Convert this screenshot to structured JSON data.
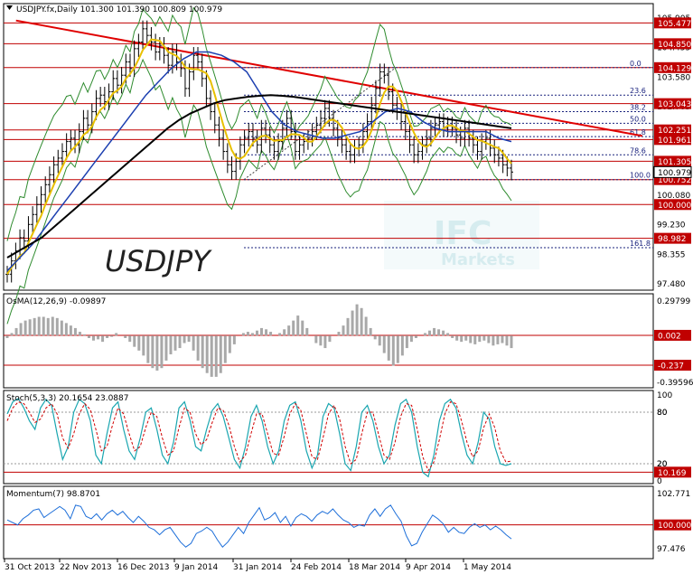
{
  "chart_data": {
    "type": "line",
    "main": {
      "title": "USDJPY.fx,Daily  101.300 101.390 100.809 100.979",
      "watermark": "USDJPY",
      "logo_top": "IFC",
      "logo_bottom": "Markets",
      "ylim": [
        97.5,
        105.95
      ],
      "yticks": [
        "105.905",
        "104.455",
        "103.580",
        "102.705",
        "101.830",
        "100.955",
        "100.080",
        "99.230",
        "98.355",
        "97.480"
      ],
      "price_tags": [
        {
          "value": 105.477,
          "label": "105.477"
        },
        {
          "value": 104.85,
          "label": "104.850"
        },
        {
          "value": 104.129,
          "label": "104.129"
        },
        {
          "value": 103.043,
          "label": "103.043"
        },
        {
          "value": 102.251,
          "label": "102.251"
        },
        {
          "value": 101.961,
          "label": "101.961"
        },
        {
          "value": 101.305,
          "label": "101.305"
        },
        {
          "value": 100.752,
          "label": "100.752"
        },
        {
          "value": 100.0,
          "label": "100.000"
        },
        {
          "value": 98.982,
          "label": "98.982"
        }
      ],
      "current": {
        "value": 100.979,
        "label": "100.979"
      },
      "fib_levels": [
        {
          "value": 104.129,
          "label": "0.0"
        },
        {
          "value": 103.3,
          "label": "23.6"
        },
        {
          "value": 102.8,
          "label": "38.2"
        },
        {
          "value": 102.45,
          "label": "50.0"
        },
        {
          "value": 102.05,
          "label": "61.8"
        },
        {
          "value": 101.5,
          "label": "78.6"
        },
        {
          "value": 100.752,
          "label": "100.0"
        },
        {
          "value": 98.7,
          "label": "161.8"
        }
      ],
      "trendline": {
        "start": {
          "x": 0.4,
          "y": 105.55
        },
        "end": {
          "x": 23.2,
          "y": 102.75
        }
      },
      "close_series": [
        97.9,
        98.3,
        98.6,
        99.0,
        98.9,
        99.4,
        99.7,
        100.0,
        100.3,
        100.6,
        100.9,
        101.2,
        101.4,
        101.6,
        101.9,
        102.0,
        101.8,
        102.2,
        102.6,
        102.4,
        102.8,
        103.2,
        103.3,
        103.1,
        103.4,
        103.8,
        103.6,
        103.9,
        104.3,
        104.1,
        104.7,
        104.9,
        105.3,
        105.1,
        104.9,
        104.6,
        104.8,
        104.5,
        104.2,
        104.6,
        104.3,
        104.1,
        103.5,
        104.0,
        104.5,
        104.3,
        103.8,
        103.2,
        102.8,
        102.4,
        102.0,
        101.6,
        101.2,
        101.0,
        101.3,
        101.8,
        102.0,
        102.2,
        102.0,
        101.8,
        102.3,
        102.1,
        101.8,
        101.6,
        101.9,
        102.3,
        102.6,
        102.2,
        101.6,
        101.8,
        101.9,
        102.0,
        102.2,
        102.4,
        102.6,
        102.9,
        102.6,
        102.3,
        102.0,
        101.8,
        101.6,
        101.5,
        101.7,
        101.8,
        102.2,
        102.5,
        103.0,
        103.5,
        104.0,
        103.9,
        103.4,
        103.0,
        102.8,
        102.5,
        102.2,
        101.8,
        101.5,
        101.6,
        101.8,
        102.0,
        102.3,
        102.4,
        102.5,
        102.3,
        102.4,
        102.3,
        102.1,
        102.0,
        102.3,
        102.0,
        101.8,
        101.6,
        101.9,
        102.0,
        101.7,
        101.5,
        101.4,
        101.2,
        101.1,
        100.98
      ],
      "ma_slow": [
        98.4,
        98.6,
        98.8,
        99.0,
        99.3,
        99.6,
        99.9,
        100.2,
        100.5,
        100.8,
        101.1,
        101.4,
        101.7,
        102.0,
        102.3,
        102.55,
        102.75,
        102.9,
        103.05,
        103.15,
        103.2,
        103.25,
        103.28,
        103.3,
        103.28,
        103.25,
        103.2,
        103.15,
        103.1,
        103.05,
        103.0,
        102.95,
        102.9,
        102.85,
        102.8,
        102.75,
        102.7,
        102.65,
        102.6,
        102.55,
        102.5,
        102.45,
        102.4,
        102.35,
        102.3
      ],
      "ma_mid": [
        98.0,
        98.4,
        98.8,
        99.3,
        99.8,
        100.3,
        100.8,
        101.3,
        101.8,
        102.3,
        102.8,
        103.3,
        103.7,
        104.1,
        104.4,
        104.6,
        104.6,
        104.5,
        104.3,
        104.0,
        103.4,
        102.8,
        102.4,
        102.2,
        102.1,
        102.0,
        102.0,
        102.1,
        102.2,
        102.5,
        102.8,
        102.9,
        102.8,
        102.5,
        102.3,
        102.2,
        102.2,
        102.2,
        102.2,
        102.0,
        101.9
      ]
    },
    "osma": {
      "title": "OsMA(12,26,9) -0.09897",
      "ylim": [
        -0.39596,
        0.29799
      ],
      "yticks": [
        "0.29799",
        "0.002",
        "-0.237",
        "-0.39596"
      ],
      "levels": [
        {
          "value": 0.002,
          "label": "0.002"
        },
        {
          "value": -0.237,
          "label": "-0.237"
        }
      ],
      "values": [
        -0.02,
        0.02,
        0.06,
        0.1,
        0.12,
        0.13,
        0.14,
        0.15,
        0.15,
        0.14,
        0.15,
        0.14,
        0.12,
        0.1,
        0.08,
        0.06,
        0.03,
        0.01,
        -0.02,
        -0.04,
        -0.03,
        -0.05,
        -0.02,
        -0.01,
        0.02,
        0.0,
        -0.02,
        -0.05,
        -0.09,
        -0.12,
        -0.16,
        -0.22,
        -0.26,
        -0.28,
        -0.26,
        -0.2,
        -0.15,
        -0.12,
        -0.1,
        -0.06,
        -0.05,
        -0.12,
        -0.2,
        -0.26,
        -0.3,
        -0.33,
        -0.33,
        -0.3,
        -0.22,
        -0.14,
        -0.07,
        0.0,
        0.02,
        0.03,
        0.02,
        0.04,
        0.06,
        0.05,
        0.03,
        0.0,
        0.02,
        0.05,
        0.08,
        0.12,
        0.16,
        0.12,
        0.06,
        0.0,
        -0.06,
        -0.08,
        -0.1,
        -0.05,
        0.0,
        0.03,
        0.08,
        0.14,
        0.2,
        0.25,
        0.22,
        0.15,
        0.06,
        -0.03,
        -0.08,
        -0.14,
        -0.2,
        -0.24,
        -0.22,
        -0.16,
        -0.1,
        -0.05,
        -0.02,
        0.0,
        0.02,
        0.04,
        0.06,
        0.05,
        0.04,
        0.02,
        -0.02,
        -0.04,
        -0.05,
        -0.04,
        -0.06,
        -0.07,
        -0.05,
        -0.04,
        -0.06,
        -0.08,
        -0.07,
        -0.06,
        -0.08,
        -0.1
      ]
    },
    "stoch": {
      "title": "Stoch(5,3,3) 20.1654 23.0887",
      "ylim": [
        0,
        100
      ],
      "yticks": [
        "100",
        "80",
        "20",
        "0"
      ],
      "levels": [
        {
          "value": 80,
          "label": "80"
        },
        {
          "value": 20,
          "label": "20"
        }
      ],
      "tag": {
        "value": 10.169,
        "label": "10.169"
      },
      "main": [
        78,
        92,
        96,
        85,
        70,
        60,
        85,
        95,
        88,
        55,
        25,
        40,
        80,
        95,
        90,
        70,
        30,
        20,
        55,
        85,
        92,
        60,
        35,
        25,
        50,
        80,
        85,
        60,
        30,
        20,
        45,
        85,
        92,
        70,
        40,
        35,
        60,
        82,
        90,
        75,
        50,
        25,
        15,
        40,
        75,
        88,
        70,
        40,
        20,
        35,
        70,
        88,
        92,
        70,
        35,
        15,
        30,
        75,
        90,
        85,
        55,
        20,
        12,
        40,
        80,
        88,
        70,
        40,
        20,
        30,
        65,
        90,
        95,
        80,
        40,
        10,
        5,
        30,
        70,
        90,
        95,
        85,
        55,
        30,
        20,
        45,
        80,
        72,
        40,
        20,
        18,
        20
      ],
      "signal": [
        70,
        85,
        92,
        90,
        80,
        68,
        72,
        85,
        90,
        78,
        50,
        38,
        55,
        78,
        90,
        83,
        60,
        35,
        40,
        65,
        85,
        78,
        55,
        35,
        40,
        62,
        80,
        75,
        50,
        30,
        35,
        62,
        85,
        80,
        55,
        42,
        48,
        68,
        85,
        82,
        65,
        40,
        22,
        30,
        55,
        78,
        78,
        55,
        32,
        30,
        52,
        78,
        90,
        82,
        55,
        28,
        25,
        50,
        78,
        88,
        72,
        40,
        20,
        25,
        55,
        80,
        80,
        55,
        30,
        25,
        45,
        75,
        90,
        88,
        60,
        28,
        12,
        22,
        48,
        78,
        92,
        90,
        70,
        45,
        28,
        35,
        62,
        78,
        62,
        35,
        22,
        23
      ],
      "scale_max": 100,
      "scale_min": 0
    },
    "momentum": {
      "title": "Momentum(7) 98.8701",
      "ylim": [
        97.4766,
        102.7711
      ],
      "yticks": [
        "102.771",
        "100.000",
        "97.476"
      ],
      "levels": [
        {
          "value": 100.0,
          "label": "100.000"
        }
      ],
      "values": [
        100.4,
        100.2,
        100.0,
        100.5,
        100.8,
        101.2,
        101.3,
        100.6,
        100.9,
        101.2,
        101.5,
        101.2,
        100.5,
        101.6,
        101.5,
        100.7,
        100.5,
        100.9,
        100.4,
        100.9,
        101.2,
        100.8,
        101.1,
        100.6,
        100.2,
        100.7,
        100.3,
        99.8,
        99.6,
        99.2,
        99.6,
        99.8,
        99.2,
        98.6,
        98.2,
        98.5,
        99.3,
        99.5,
        99.8,
        99.5,
        98.8,
        98.2,
        98.6,
        99.2,
        99.8,
        99.3,
        100.2,
        100.8,
        101.4,
        100.4,
        100.6,
        101.0,
        100.2,
        100.7,
        99.9,
        100.6,
        100.9,
        100.7,
        100.3,
        100.8,
        101.1,
        100.9,
        101.3,
        100.8,
        100.4,
        100.2,
        99.8,
        100.0,
        99.9,
        100.8,
        101.3,
        100.7,
        101.3,
        101.6,
        100.9,
        100.3,
        99.1,
        98.3,
        98.5,
        99.4,
        100.1,
        100.8,
        100.5,
        100.1,
        99.4,
        99.8,
        99.4,
        99.3,
        99.8,
        100.1,
        99.8,
        100.0,
        99.6,
        99.9,
        99.6,
        99.2,
        98.87
      ]
    },
    "dates": [
      "31 Oct 2013",
      "22 Nov 2013",
      "16 Dec 2013",
      "9 Jan 2014",
      "31 Jan 2014",
      "24 Feb 2014",
      "18 Mar 2014",
      "9 Apr 2014",
      "1 May 2014"
    ]
  }
}
